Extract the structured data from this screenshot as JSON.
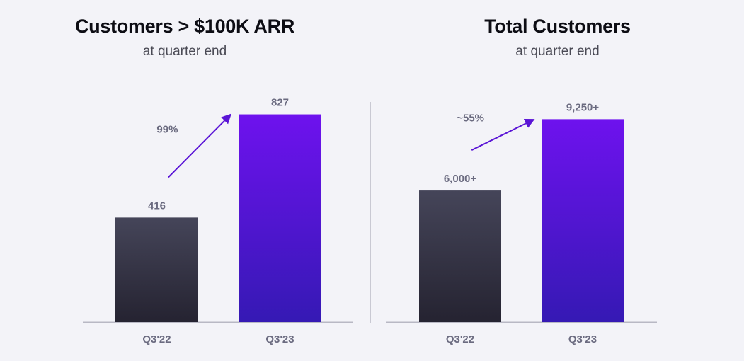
{
  "colors": {
    "dark_top": "#454559",
    "dark_bottom": "#252331",
    "purple_top": "#6e12ee",
    "purple_bottom": "#3519b4",
    "arrow": "#5a14d6",
    "label": "#6b6b80",
    "axis": "#b8b8c4"
  },
  "chart_data": [
    {
      "type": "bar",
      "title": "Customers > $100K ARR",
      "subtitle": "at quarter end",
      "categories": [
        "Q3'22",
        "Q3'23"
      ],
      "values": [
        416,
        827
      ],
      "value_labels": [
        "416",
        "827"
      ],
      "growth_label": "99%",
      "ylim": [
        0,
        930
      ]
    },
    {
      "type": "bar",
      "title": "Total Customers",
      "subtitle": "at quarter end",
      "categories": [
        "Q3'22",
        "Q3'23"
      ],
      "values": [
        6000,
        9250
      ],
      "value_labels": [
        "6,000+",
        "9,250+"
      ],
      "growth_label": "~55%",
      "ylim": [
        0,
        10650
      ]
    }
  ]
}
